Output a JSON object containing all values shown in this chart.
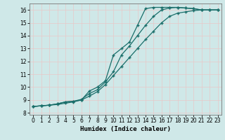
{
  "xlabel": "Humidex (Indice chaleur)",
  "bg_color": "#cfe8e8",
  "grid_color": "#e8c8c8",
  "line_color": "#1a6e6a",
  "xlim": [
    -0.5,
    23.5
  ],
  "ylim": [
    7.85,
    16.5
  ],
  "xticks": [
    0,
    1,
    2,
    3,
    4,
    5,
    6,
    7,
    8,
    9,
    10,
    11,
    12,
    13,
    14,
    15,
    16,
    17,
    18,
    19,
    20,
    21,
    22,
    23
  ],
  "yticks": [
    8,
    9,
    10,
    11,
    12,
    13,
    14,
    15,
    16
  ],
  "line1_x": [
    0,
    1,
    2,
    3,
    4,
    5,
    6,
    7,
    8,
    9,
    10,
    11,
    12,
    13,
    14,
    15,
    16,
    17,
    18,
    19,
    20,
    21,
    22,
    23
  ],
  "line1_y": [
    8.5,
    8.55,
    8.6,
    8.7,
    8.85,
    8.9,
    9.0,
    9.7,
    10.0,
    10.5,
    12.5,
    13.0,
    13.5,
    14.8,
    16.1,
    16.2,
    16.2,
    16.2,
    16.2,
    16.15,
    16.1,
    16.0,
    16.0,
    16.0
  ],
  "line2_x": [
    0,
    1,
    2,
    3,
    4,
    5,
    6,
    7,
    8,
    9,
    10,
    11,
    12,
    13,
    14,
    15,
    16,
    17,
    18,
    19,
    20,
    21,
    22,
    23
  ],
  "line2_y": [
    8.5,
    8.55,
    8.6,
    8.7,
    8.85,
    8.9,
    9.05,
    9.5,
    9.8,
    10.4,
    11.2,
    12.5,
    13.2,
    14.0,
    14.8,
    15.5,
    16.0,
    16.15,
    16.2,
    16.15,
    16.1,
    16.0,
    16.0,
    16.0
  ],
  "line3_x": [
    0,
    1,
    2,
    3,
    4,
    5,
    6,
    7,
    8,
    9,
    10,
    11,
    12,
    13,
    14,
    15,
    16,
    17,
    18,
    19,
    20,
    21,
    22,
    23
  ],
  "line3_y": [
    8.5,
    8.55,
    8.6,
    8.65,
    8.75,
    8.85,
    9.0,
    9.3,
    9.65,
    10.2,
    10.9,
    11.6,
    12.3,
    13.0,
    13.7,
    14.35,
    15.0,
    15.5,
    15.75,
    15.85,
    15.95,
    16.0,
    16.0,
    16.0
  ],
  "marker": "+",
  "markersize": 3,
  "markeredgewidth": 1.0,
  "linewidth": 0.9,
  "tick_fontsize": 5.5,
  "xlabel_fontsize": 6.5
}
